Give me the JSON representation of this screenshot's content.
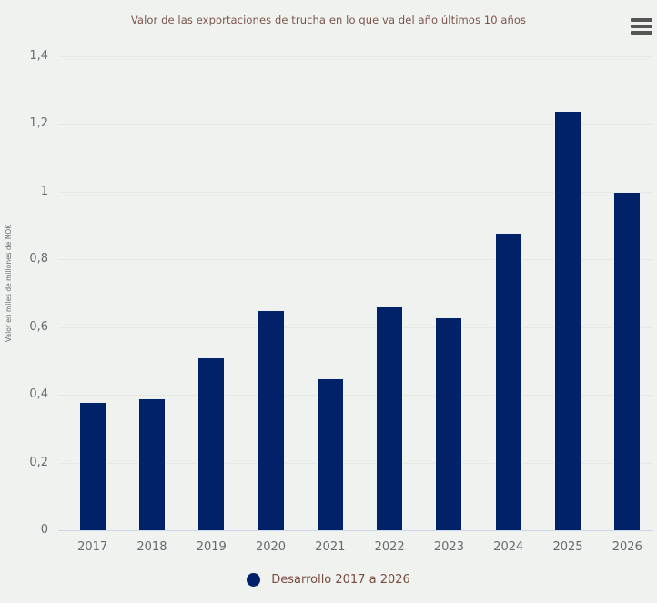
{
  "header": {
    "title": "Valor de las exportaciones de trucha en lo que va del año últimos 10 años",
    "menu_icon": "hamburger-menu-icon"
  },
  "colors": {
    "background": "#f0f2ef",
    "bar": "#012169",
    "gridline": "#e6e8e4",
    "axis_line": "#ccd6eb",
    "axis_text": "#666b6e",
    "title_text": "#7a544b",
    "legend_text": "#7b4a3e",
    "menu_icon": "#555555"
  },
  "chart_data": {
    "type": "bar",
    "title": "Valor de las exportaciones de trucha en lo que va del año últimos 10 años",
    "categories": [
      "2017",
      "2018",
      "2019",
      "2020",
      "2021",
      "2022",
      "2023",
      "2024",
      "2025",
      "2026"
    ],
    "values": [
      0.38,
      0.39,
      0.51,
      0.65,
      0.45,
      0.66,
      0.63,
      0.88,
      1.24,
      1.0
    ],
    "series": [
      {
        "name": "Desarrollo 2017 a 2026",
        "values": [
          0.38,
          0.39,
          0.51,
          0.65,
          0.45,
          0.66,
          0.63,
          0.88,
          1.24,
          1.0
        ]
      }
    ],
    "xlabel": "",
    "ylabel": "Valor en miles de millones de NOK",
    "ylim": [
      0,
      1.4
    ],
    "ytick_step": 0.2,
    "ytick_labels": [
      "0",
      "0,2",
      "0,4",
      "0,6",
      "0,8",
      "1",
      "1,2",
      "1,4"
    ],
    "grid": true,
    "legend_position": "bottom-center"
  },
  "legend": {
    "label": "Desarrollo 2017 a 2026"
  }
}
